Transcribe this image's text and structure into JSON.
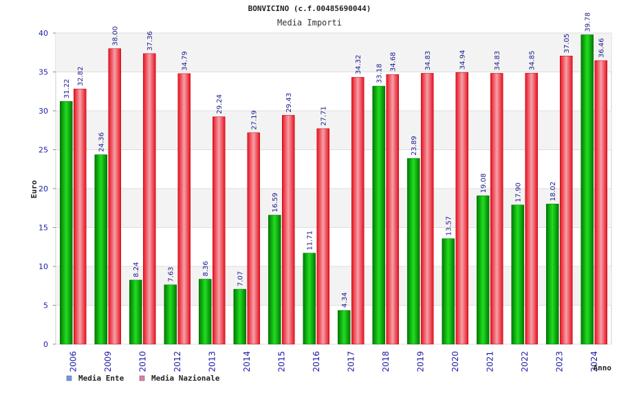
{
  "chart_data": {
    "type": "bar",
    "title": "BONVICINO (c.f.00485690044)",
    "subtitle": "Media Importi",
    "xlabel": "Anno",
    "ylabel": "Euro",
    "ylim": [
      0,
      40
    ],
    "yticks": [
      0,
      5,
      10,
      15,
      20,
      25,
      30,
      35,
      40
    ],
    "grid": true,
    "legend_position": "bottom-left",
    "categories": [
      "2006",
      "2009",
      "2010",
      "2012",
      "2013",
      "2014",
      "2015",
      "2016",
      "2017",
      "2018",
      "2019",
      "2020",
      "2021",
      "2022",
      "2023",
      "2024"
    ],
    "series": [
      {
        "name": "Media Ente",
        "legend_color": "#6a9be8",
        "bar_color": "#18c018",
        "values": [
          31.22,
          24.36,
          8.24,
          7.63,
          8.36,
          7.07,
          16.59,
          11.71,
          4.34,
          33.18,
          23.89,
          13.57,
          19.08,
          17.9,
          18.02,
          39.78
        ],
        "labels": [
          "31.22",
          "24.36",
          "8.24",
          "7.63",
          "8.36",
          "7.07",
          "16.59",
          "11.71",
          "4.34",
          "33.18",
          "23.89",
          "13.57",
          "19.08",
          "17.90",
          "18.02",
          "39.78"
        ]
      },
      {
        "name": "Media Nazionale",
        "legend_color": "#e07fa8",
        "bar_color": "#ee2030",
        "values": [
          32.82,
          38.0,
          37.36,
          34.79,
          29.24,
          27.19,
          29.43,
          27.71,
          34.32,
          34.68,
          34.83,
          34.94,
          34.83,
          34.85,
          37.05,
          36.46
        ],
        "labels": [
          "32.82",
          "38.00",
          "37.36",
          "34.79",
          "29.24",
          "27.19",
          "29.43",
          "27.71",
          "34.32",
          "34.68",
          "34.83",
          "34.94",
          "34.83",
          "34.85",
          "37.05",
          "36.46"
        ]
      }
    ]
  }
}
